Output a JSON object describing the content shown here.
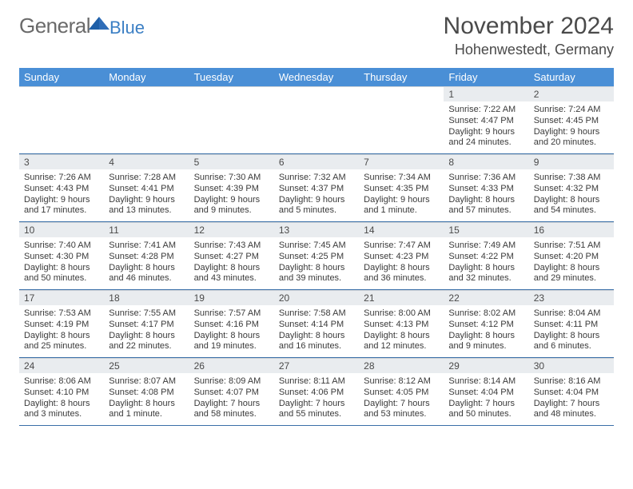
{
  "logo": {
    "text1": "General",
    "text2": "Blue",
    "text1_color": "#6a6a6a",
    "text2_color": "#3b7fc4",
    "triangle_color": "#2f6db8"
  },
  "title": {
    "month": "November 2024",
    "location": "Hohenwestedt, Germany",
    "month_fontsize": 30,
    "location_fontsize": 18,
    "text_color": "#4a4a4a"
  },
  "weekdays": [
    "Sunday",
    "Monday",
    "Tuesday",
    "Wednesday",
    "Thursday",
    "Friday",
    "Saturday"
  ],
  "weekday_bar_color": "#4a8fd6",
  "weekday_text_color": "#ffffff",
  "daynum_bg": "#e9ecef",
  "rule_color": "#3a6fa8",
  "weeks": [
    [
      {
        "n": "",
        "lines": []
      },
      {
        "n": "",
        "lines": []
      },
      {
        "n": "",
        "lines": []
      },
      {
        "n": "",
        "lines": []
      },
      {
        "n": "",
        "lines": []
      },
      {
        "n": "1",
        "lines": [
          "Sunrise: 7:22 AM",
          "Sunset: 4:47 PM",
          "Daylight: 9 hours and 24 minutes."
        ]
      },
      {
        "n": "2",
        "lines": [
          "Sunrise: 7:24 AM",
          "Sunset: 4:45 PM",
          "Daylight: 9 hours and 20 minutes."
        ]
      }
    ],
    [
      {
        "n": "3",
        "lines": [
          "Sunrise: 7:26 AM",
          "Sunset: 4:43 PM",
          "Daylight: 9 hours and 17 minutes."
        ]
      },
      {
        "n": "4",
        "lines": [
          "Sunrise: 7:28 AM",
          "Sunset: 4:41 PM",
          "Daylight: 9 hours and 13 minutes."
        ]
      },
      {
        "n": "5",
        "lines": [
          "Sunrise: 7:30 AM",
          "Sunset: 4:39 PM",
          "Daylight: 9 hours and 9 minutes."
        ]
      },
      {
        "n": "6",
        "lines": [
          "Sunrise: 7:32 AM",
          "Sunset: 4:37 PM",
          "Daylight: 9 hours and 5 minutes."
        ]
      },
      {
        "n": "7",
        "lines": [
          "Sunrise: 7:34 AM",
          "Sunset: 4:35 PM",
          "Daylight: 9 hours and 1 minute."
        ]
      },
      {
        "n": "8",
        "lines": [
          "Sunrise: 7:36 AM",
          "Sunset: 4:33 PM",
          "Daylight: 8 hours and 57 minutes."
        ]
      },
      {
        "n": "9",
        "lines": [
          "Sunrise: 7:38 AM",
          "Sunset: 4:32 PM",
          "Daylight: 8 hours and 54 minutes."
        ]
      }
    ],
    [
      {
        "n": "10",
        "lines": [
          "Sunrise: 7:40 AM",
          "Sunset: 4:30 PM",
          "Daylight: 8 hours and 50 minutes."
        ]
      },
      {
        "n": "11",
        "lines": [
          "Sunrise: 7:41 AM",
          "Sunset: 4:28 PM",
          "Daylight: 8 hours and 46 minutes."
        ]
      },
      {
        "n": "12",
        "lines": [
          "Sunrise: 7:43 AM",
          "Sunset: 4:27 PM",
          "Daylight: 8 hours and 43 minutes."
        ]
      },
      {
        "n": "13",
        "lines": [
          "Sunrise: 7:45 AM",
          "Sunset: 4:25 PM",
          "Daylight: 8 hours and 39 minutes."
        ]
      },
      {
        "n": "14",
        "lines": [
          "Sunrise: 7:47 AM",
          "Sunset: 4:23 PM",
          "Daylight: 8 hours and 36 minutes."
        ]
      },
      {
        "n": "15",
        "lines": [
          "Sunrise: 7:49 AM",
          "Sunset: 4:22 PM",
          "Daylight: 8 hours and 32 minutes."
        ]
      },
      {
        "n": "16",
        "lines": [
          "Sunrise: 7:51 AM",
          "Sunset: 4:20 PM",
          "Daylight: 8 hours and 29 minutes."
        ]
      }
    ],
    [
      {
        "n": "17",
        "lines": [
          "Sunrise: 7:53 AM",
          "Sunset: 4:19 PM",
          "Daylight: 8 hours and 25 minutes."
        ]
      },
      {
        "n": "18",
        "lines": [
          "Sunrise: 7:55 AM",
          "Sunset: 4:17 PM",
          "Daylight: 8 hours and 22 minutes."
        ]
      },
      {
        "n": "19",
        "lines": [
          "Sunrise: 7:57 AM",
          "Sunset: 4:16 PM",
          "Daylight: 8 hours and 19 minutes."
        ]
      },
      {
        "n": "20",
        "lines": [
          "Sunrise: 7:58 AM",
          "Sunset: 4:14 PM",
          "Daylight: 8 hours and 16 minutes."
        ]
      },
      {
        "n": "21",
        "lines": [
          "Sunrise: 8:00 AM",
          "Sunset: 4:13 PM",
          "Daylight: 8 hours and 12 minutes."
        ]
      },
      {
        "n": "22",
        "lines": [
          "Sunrise: 8:02 AM",
          "Sunset: 4:12 PM",
          "Daylight: 8 hours and 9 minutes."
        ]
      },
      {
        "n": "23",
        "lines": [
          "Sunrise: 8:04 AM",
          "Sunset: 4:11 PM",
          "Daylight: 8 hours and 6 minutes."
        ]
      }
    ],
    [
      {
        "n": "24",
        "lines": [
          "Sunrise: 8:06 AM",
          "Sunset: 4:10 PM",
          "Daylight: 8 hours and 3 minutes."
        ]
      },
      {
        "n": "25",
        "lines": [
          "Sunrise: 8:07 AM",
          "Sunset: 4:08 PM",
          "Daylight: 8 hours and 1 minute."
        ]
      },
      {
        "n": "26",
        "lines": [
          "Sunrise: 8:09 AM",
          "Sunset: 4:07 PM",
          "Daylight: 7 hours and 58 minutes."
        ]
      },
      {
        "n": "27",
        "lines": [
          "Sunrise: 8:11 AM",
          "Sunset: 4:06 PM",
          "Daylight: 7 hours and 55 minutes."
        ]
      },
      {
        "n": "28",
        "lines": [
          "Sunrise: 8:12 AM",
          "Sunset: 4:05 PM",
          "Daylight: 7 hours and 53 minutes."
        ]
      },
      {
        "n": "29",
        "lines": [
          "Sunrise: 8:14 AM",
          "Sunset: 4:04 PM",
          "Daylight: 7 hours and 50 minutes."
        ]
      },
      {
        "n": "30",
        "lines": [
          "Sunrise: 8:16 AM",
          "Sunset: 4:04 PM",
          "Daylight: 7 hours and 48 minutes."
        ]
      }
    ]
  ]
}
